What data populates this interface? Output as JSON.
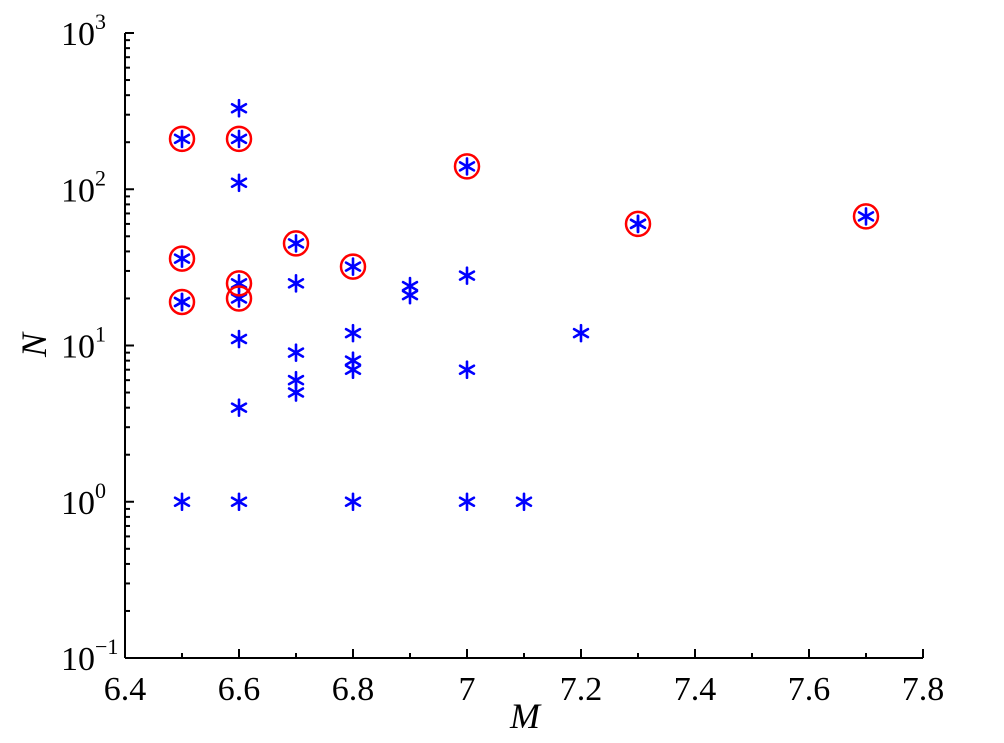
{
  "chart_data": {
    "type": "scatter",
    "title": "",
    "xlabel": "M",
    "ylabel": "N",
    "xlim": [
      6.4,
      7.8
    ],
    "ylim": [
      0.1,
      1000
    ],
    "yscale": "log",
    "grid": false,
    "x_ticks": [
      "6.4",
      "6.6",
      "6.8",
      "7",
      "7.2",
      "7.4",
      "7.6",
      "7.8"
    ],
    "y_ticks": [
      {
        "base": "10",
        "exp": "−1",
        "value": 0.1
      },
      {
        "base": "10",
        "exp": "0",
        "value": 1
      },
      {
        "base": "10",
        "exp": "1",
        "value": 10
      },
      {
        "base": "10",
        "exp": "2",
        "value": 100
      },
      {
        "base": "10",
        "exp": "3",
        "value": 1000
      }
    ],
    "series": [
      {
        "marker": "asterisk",
        "color": "#0000ff",
        "points": [
          {
            "x": 6.5,
            "y": 210
          },
          {
            "x": 6.5,
            "y": 36
          },
          {
            "x": 6.5,
            "y": 19
          },
          {
            "x": 6.5,
            "y": 19
          },
          {
            "x": 6.5,
            "y": 1
          },
          {
            "x": 6.6,
            "y": 330
          },
          {
            "x": 6.6,
            "y": 210
          },
          {
            "x": 6.6,
            "y": 110
          },
          {
            "x": 6.6,
            "y": 25
          },
          {
            "x": 6.6,
            "y": 20
          },
          {
            "x": 6.6,
            "y": 11
          },
          {
            "x": 6.6,
            "y": 4
          },
          {
            "x": 6.6,
            "y": 1
          },
          {
            "x": 6.7,
            "y": 45
          },
          {
            "x": 6.7,
            "y": 25
          },
          {
            "x": 6.7,
            "y": 9
          },
          {
            "x": 6.7,
            "y": 6
          },
          {
            "x": 6.7,
            "y": 5
          },
          {
            "x": 6.8,
            "y": 32
          },
          {
            "x": 6.8,
            "y": 12
          },
          {
            "x": 6.8,
            "y": 8
          },
          {
            "x": 6.8,
            "y": 7
          },
          {
            "x": 6.8,
            "y": 1
          },
          {
            "x": 6.9,
            "y": 24
          },
          {
            "x": 6.9,
            "y": 21
          },
          {
            "x": 7.0,
            "y": 140
          },
          {
            "x": 7.0,
            "y": 28
          },
          {
            "x": 7.0,
            "y": 7
          },
          {
            "x": 7.0,
            "y": 1
          },
          {
            "x": 7.1,
            "y": 1
          },
          {
            "x": 7.2,
            "y": 12
          },
          {
            "x": 7.3,
            "y": 60
          },
          {
            "x": 7.3,
            "y": 60
          },
          {
            "x": 7.7,
            "y": 67
          }
        ]
      },
      {
        "marker": "circle",
        "color": "#ff0000",
        "points": [
          {
            "x": 6.5,
            "y": 210
          },
          {
            "x": 6.5,
            "y": 36
          },
          {
            "x": 6.5,
            "y": 19
          },
          {
            "x": 6.6,
            "y": 210
          },
          {
            "x": 6.6,
            "y": 25
          },
          {
            "x": 6.6,
            "y": 20
          },
          {
            "x": 6.7,
            "y": 45
          },
          {
            "x": 6.8,
            "y": 32
          },
          {
            "x": 7.0,
            "y": 140
          },
          {
            "x": 7.3,
            "y": 60
          },
          {
            "x": 7.7,
            "y": 67
          }
        ]
      }
    ]
  }
}
